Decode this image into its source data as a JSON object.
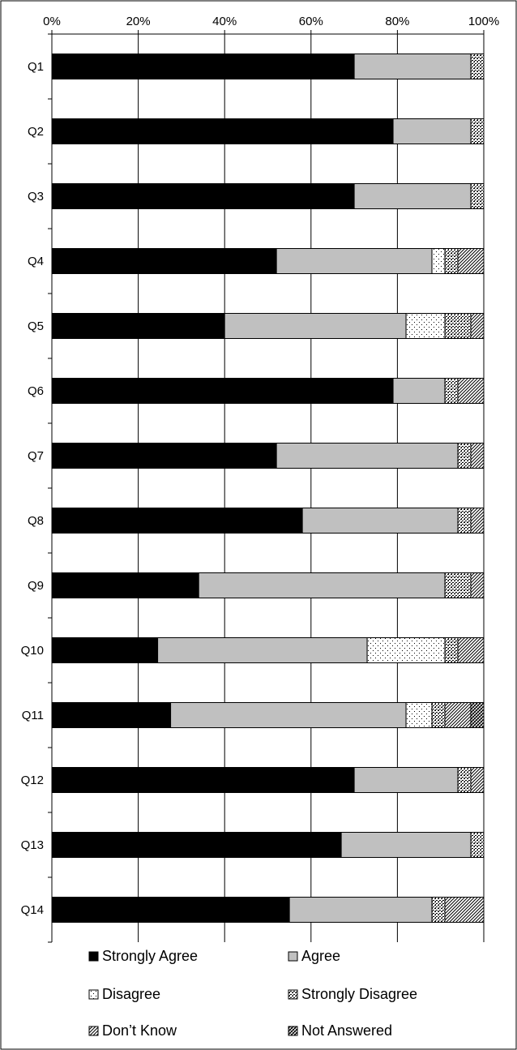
{
  "chart_data": {
    "type": "bar",
    "orientation": "horizontal",
    "stacked": "percent",
    "xlim": [
      0,
      100
    ],
    "x_ticks": [
      "0%",
      "20%",
      "40%",
      "60%",
      "80%",
      "100%"
    ],
    "grid": "vertical",
    "legend_position": "bottom",
    "categories": [
      "Q1",
      "Q2",
      "Q3",
      "Q4",
      "Q5",
      "Q6",
      "Q7",
      "Q8",
      "Q9",
      "Q10",
      "Q11",
      "Q12",
      "Q13",
      "Q14"
    ],
    "series": [
      {
        "name": "Strongly Agree",
        "pattern": "solid-black",
        "values": [
          70,
          79,
          70,
          52,
          40,
          79,
          52,
          58,
          34,
          24.5,
          27.5,
          70,
          67,
          55
        ]
      },
      {
        "name": "Agree",
        "pattern": "solid-gray",
        "values": [
          27,
          18,
          27,
          36,
          42,
          12,
          42,
          36,
          57,
          48.5,
          54.5,
          24,
          30,
          33
        ]
      },
      {
        "name": "Disagree",
        "pattern": "light-dots",
        "values": [
          0,
          0,
          0,
          3,
          9,
          0,
          0,
          0,
          0,
          18,
          6,
          0,
          0,
          0
        ]
      },
      {
        "name": "Strongly Disagree",
        "pattern": "dense-dots",
        "values": [
          3,
          3,
          3,
          3,
          6,
          3,
          3,
          3,
          6,
          3,
          3,
          3,
          3,
          3
        ]
      },
      {
        "name": "Don’t Know",
        "pattern": "diagonal-lines",
        "values": [
          0,
          0,
          0,
          6,
          3,
          6,
          3,
          3,
          3,
          6,
          6,
          3,
          0,
          9
        ]
      },
      {
        "name": "Not Answered",
        "pattern": "diagonal-hatch",
        "values": [
          0,
          0,
          0,
          0,
          0,
          0,
          0,
          0,
          0,
          0,
          3,
          0,
          0,
          0
        ]
      }
    ]
  }
}
